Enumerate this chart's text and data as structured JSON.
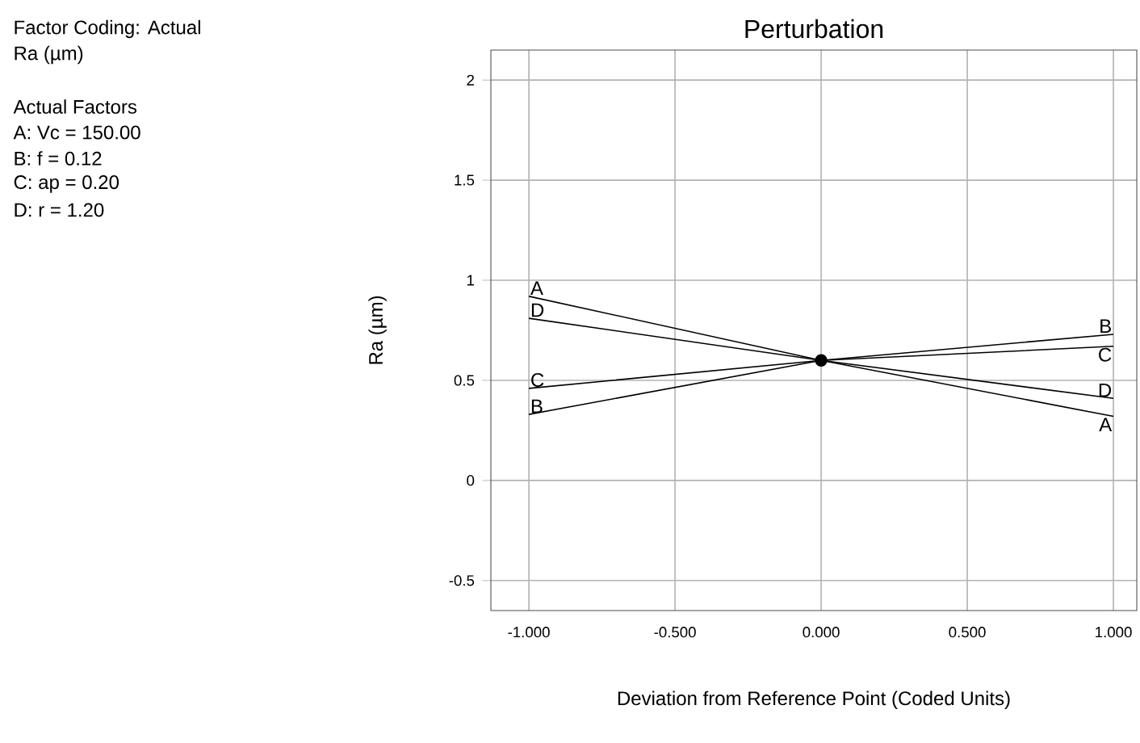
{
  "chart_data": {
    "type": "line",
    "title": "Perturbation",
    "xlabel": "Deviation from Reference Point (Coded Units)",
    "ylabel": "Ra (µm)",
    "annotations": [
      "Factor Coding: Actual",
      "Ra (µm)",
      "Actual Factors",
      "A: Vc = 150.00",
      "B: f = 0.12",
      "C: ap = 0.20",
      "D: r = 1.20"
    ],
    "xlim": [
      -1.13,
      1.08
    ],
    "ylim": [
      -0.65,
      2.15
    ],
    "xticks": [
      {
        "value": -1,
        "label": "-1.000"
      },
      {
        "value": -0.5,
        "label": "-0.500"
      },
      {
        "value": 0,
        "label": "0.000"
      },
      {
        "value": 0.5,
        "label": "0.500"
      },
      {
        "value": 1,
        "label": "1.000"
      }
    ],
    "yticks": [
      -0.5,
      0,
      0.5,
      1,
      1.5,
      2
    ],
    "grid": true,
    "series": [
      {
        "name": "A",
        "color": "#000000",
        "x": [
          -1,
          0,
          1
        ],
        "values": [
          0.92,
          0.6,
          0.32
        ]
      },
      {
        "name": "B",
        "color": "#000000",
        "x": [
          -1,
          0,
          1
        ],
        "values": [
          0.33,
          0.6,
          0.73
        ]
      },
      {
        "name": "C",
        "color": "#000000",
        "x": [
          -1,
          0,
          1
        ],
        "values": [
          0.46,
          0.6,
          0.67
        ]
      },
      {
        "name": "D",
        "color": "#000000",
        "x": [
          -1,
          0,
          1
        ],
        "values": [
          0.81,
          0.6,
          0.41
        ]
      },
      {
        "type": "scatter",
        "marker": "circle",
        "color": "#000000",
        "x": [
          0
        ],
        "values": [
          0.6
        ]
      }
    ]
  }
}
